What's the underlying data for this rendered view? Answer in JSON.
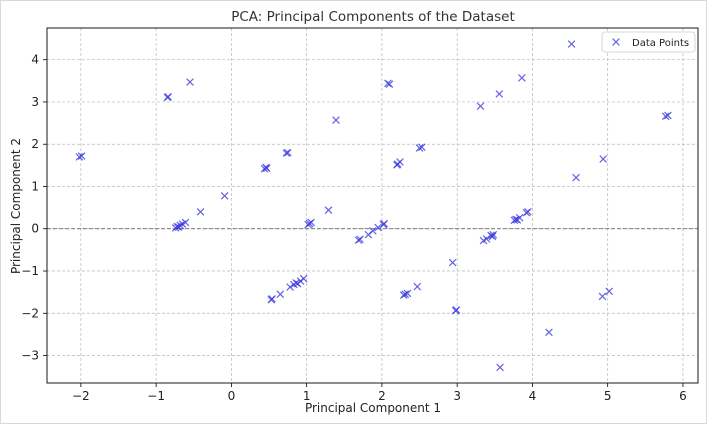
{
  "chart_data": {
    "type": "scatter",
    "title": "PCA: Principal Components of the Dataset",
    "xlabel": "Principal Component 1",
    "ylabel": "Principal Component 2",
    "xlim": [
      -2.45,
      6.2
    ],
    "ylim": [
      -3.65,
      4.75
    ],
    "xticks": [
      -2,
      -1,
      0,
      1,
      2,
      3,
      4,
      5,
      6
    ],
    "yticks": [
      -3,
      -2,
      -1,
      0,
      1,
      2,
      3,
      4
    ],
    "grid": true,
    "zero_line": 0,
    "legend": {
      "position": "top-right",
      "entries": [
        "Data Points"
      ]
    },
    "series": [
      {
        "name": "Data Points",
        "marker": "x",
        "color": "#3333dd",
        "points": [
          [
            -2.02,
            1.7
          ],
          [
            -1.99,
            1.72
          ],
          [
            -0.85,
            3.11
          ],
          [
            -0.84,
            3.12
          ],
          [
            -0.55,
            3.47
          ],
          [
            -0.74,
            0.02
          ],
          [
            -0.72,
            0.05
          ],
          [
            -0.7,
            0.04
          ],
          [
            -0.68,
            0.08
          ],
          [
            -0.65,
            0.11
          ],
          [
            -0.61,
            0.15
          ],
          [
            -0.41,
            0.4
          ],
          [
            -0.09,
            0.78
          ],
          [
            0.44,
            1.42
          ],
          [
            0.46,
            1.45
          ],
          [
            0.47,
            1.43
          ],
          [
            0.73,
            1.79
          ],
          [
            0.75,
            1.8
          ],
          [
            0.53,
            -1.68
          ],
          [
            0.54,
            -1.66
          ],
          [
            0.65,
            -1.55
          ],
          [
            0.78,
            -1.38
          ],
          [
            0.83,
            -1.32
          ],
          [
            0.86,
            -1.28
          ],
          [
            0.88,
            -1.3
          ],
          [
            0.92,
            -1.24
          ],
          [
            0.96,
            -1.18
          ],
          [
            1.02,
            0.1
          ],
          [
            1.04,
            0.12
          ],
          [
            1.06,
            0.15
          ],
          [
            1.29,
            0.44
          ],
          [
            1.39,
            2.57
          ],
          [
            1.69,
            -0.27
          ],
          [
            1.71,
            -0.25
          ],
          [
            1.82,
            -0.14
          ],
          [
            1.88,
            -0.05
          ],
          [
            1.95,
            0.03
          ],
          [
            2.02,
            0.1
          ],
          [
            2.03,
            0.12
          ],
          [
            2.08,
            3.44
          ],
          [
            2.1,
            3.42
          ],
          [
            2.2,
            1.51
          ],
          [
            2.21,
            1.53
          ],
          [
            2.24,
            1.58
          ],
          [
            2.29,
            -1.57
          ],
          [
            2.31,
            -1.55
          ],
          [
            2.34,
            -1.53
          ],
          [
            2.47,
            -1.37
          ],
          [
            2.5,
            1.91
          ],
          [
            2.53,
            1.93
          ],
          [
            2.94,
            -0.8
          ],
          [
            2.98,
            -1.94
          ],
          [
            2.99,
            -1.92
          ],
          [
            3.31,
            2.9
          ],
          [
            3.35,
            -0.28
          ],
          [
            3.39,
            -0.24
          ],
          [
            3.45,
            -0.16
          ],
          [
            3.47,
            -0.18
          ],
          [
            3.48,
            -0.14
          ],
          [
            3.56,
            3.19
          ],
          [
            3.57,
            -3.28
          ],
          [
            3.76,
            0.2
          ],
          [
            3.78,
            0.22
          ],
          [
            3.8,
            0.21
          ],
          [
            3.83,
            0.26
          ],
          [
            3.86,
            3.57
          ],
          [
            3.92,
            0.38
          ],
          [
            3.94,
            0.4
          ],
          [
            4.22,
            -2.45
          ],
          [
            4.52,
            4.37
          ],
          [
            4.58,
            1.21
          ],
          [
            4.93,
            -1.6
          ],
          [
            4.94,
            1.65
          ],
          [
            5.02,
            -1.48
          ],
          [
            5.77,
            2.66
          ],
          [
            5.8,
            2.68
          ]
        ]
      }
    ]
  }
}
